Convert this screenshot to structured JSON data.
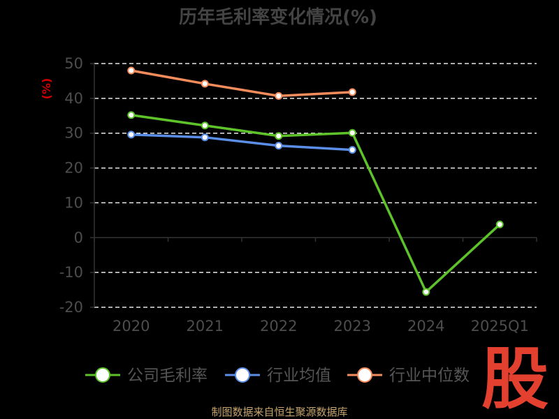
{
  "chart_data": {
    "type": "line",
    "title": "历年毛利率变化情况(%)",
    "ylabel": "(%)",
    "categories": [
      "2020",
      "2021",
      "2022",
      "2023",
      "2024",
      "2025Q1"
    ],
    "yticks": [
      "50",
      "40",
      "30",
      "20",
      "10",
      "0",
      "-10",
      "-20"
    ],
    "ylim": [
      -20,
      50
    ],
    "grid": true,
    "legend_position": "bottom",
    "series": [
      {
        "name": "公司毛利率",
        "color": "#5ec22a",
        "values": [
          35.2,
          32.2,
          29.2,
          30.1,
          -15.6,
          3.8
        ]
      },
      {
        "name": "行业均值",
        "color": "#5b8ee6",
        "values": [
          29.6,
          28.8,
          26.4,
          25.2,
          null,
          null
        ]
      },
      {
        "name": "行业中位数",
        "color": "#f48c5c",
        "values": [
          48.0,
          44.2,
          40.7,
          41.8,
          null,
          null
        ]
      }
    ]
  },
  "source": "制图数据来自恒生聚源数据库",
  "logo": "股"
}
